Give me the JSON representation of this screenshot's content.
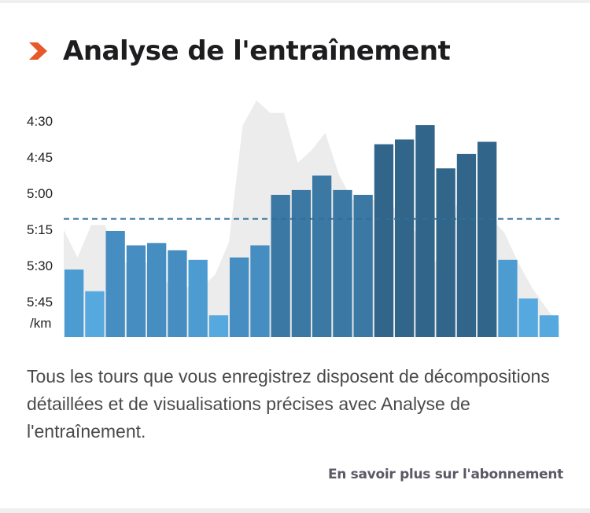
{
  "header": {
    "title": "Analyse de l'entraînement",
    "icon": "chevron-right-icon",
    "icon_color": "#e8592a"
  },
  "chart_data": {
    "type": "bar",
    "ylabel": "/km",
    "y_tick_labels": [
      "4:30",
      "4:45",
      "5:00",
      "5:15",
      "5:30",
      "5:45"
    ],
    "y_ticks_seconds": [
      270,
      285,
      300,
      315,
      330,
      345
    ],
    "ylim_seconds": [
      352,
      266
    ],
    "reference_line_seconds": 310,
    "values_seconds": [
      331,
      340,
      315,
      321,
      320,
      323,
      327,
      350,
      326,
      321,
      300,
      298,
      292,
      298,
      300,
      279,
      277,
      271,
      289,
      283,
      278,
      327,
      343,
      350
    ],
    "elevation_profile": [
      43,
      32,
      45,
      45,
      30,
      30,
      30,
      22,
      22,
      20,
      20,
      25,
      38,
      85,
      95,
      90,
      90,
      70,
      75,
      82,
      65,
      55,
      55,
      55,
      52,
      45,
      40,
      30,
      45,
      60,
      55,
      48,
      42,
      30,
      20,
      12,
      5
    ],
    "colors": {
      "bar_light": "#4ea6dd",
      "bar_mid": "#3e88c0",
      "bar_dark": "#2a5f85",
      "reference_line": "#2f6f99",
      "elevation_fill": "#ececec"
    }
  },
  "body": {
    "description": "Tous les tours que vous enregistrez disposent de décompositions détaillées et de visualisations précises avec Analyse de l'entraînement.",
    "link_label": "En savoir plus sur l'abonnement"
  }
}
